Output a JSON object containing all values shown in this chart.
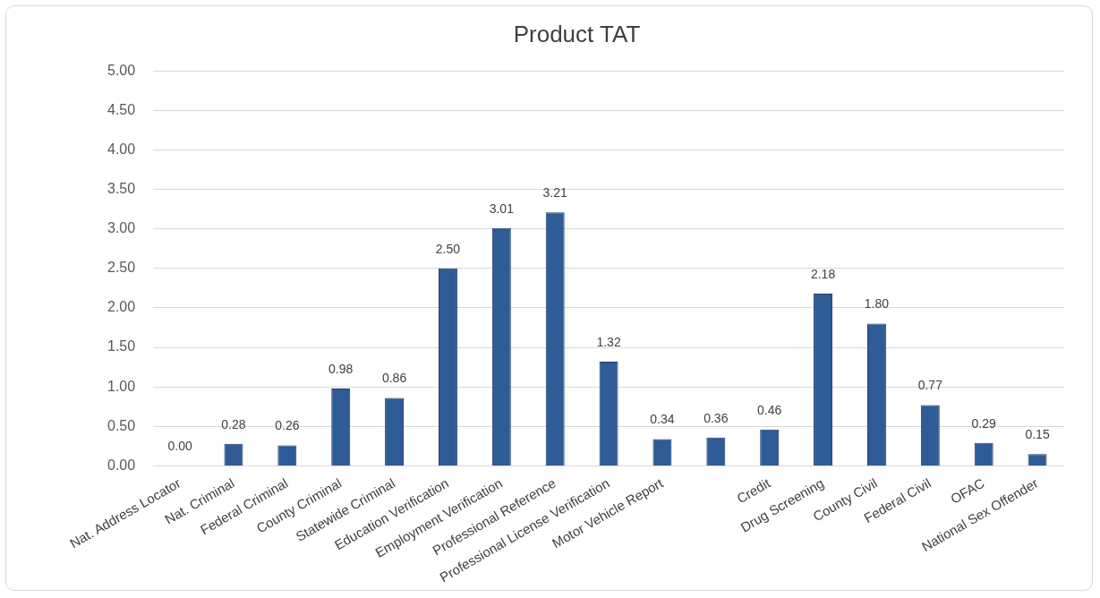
{
  "chart_data": {
    "type": "bar",
    "title": "Product TAT",
    "categories": [
      "Nat. Address Locator",
      "Nat. Criminal",
      "Federal Criminal",
      "County Criminal",
      "Statewide Criminal",
      "Education Verification",
      "Employment Verification",
      "Professional Reference",
      "Professional License Verification",
      "Motor Vehicle Report",
      null,
      "Credit",
      "Drug Screening",
      "County Civil",
      "Federal Civil",
      "OFAC",
      "National Sex Offender"
    ],
    "values": [
      0,
      0.28,
      0.26,
      0.98,
      0.86,
      2.5,
      3.01,
      3.21,
      1.32,
      0.34,
      0.36,
      0.46,
      2.18,
      1.8,
      0.77,
      0.29,
      0.15
    ],
    "value_labels": [
      "0.00",
      "0.28",
      "0.26",
      "0.98",
      "0.86",
      "2.50",
      "3.01",
      "3.21",
      "1.32",
      "0.34",
      "0.36",
      "0.46",
      "2.18",
      "1.80",
      "0.77",
      "0.29",
      "0.15"
    ],
    "color": "#2f5b97",
    "ylim": [
      0,
      5
    ],
    "yticks": [
      {
        "value": 0,
        "label": "0.00"
      },
      {
        "value": 0.5,
        "label": "0.50"
      },
      {
        "value": 1,
        "label": "1.00"
      },
      {
        "value": 1.5,
        "label": "1.50"
      },
      {
        "value": 2,
        "label": "2.00"
      },
      {
        "value": 2.5,
        "label": "2.50"
      },
      {
        "value": 3,
        "label": "3.00"
      },
      {
        "value": 3.5,
        "label": "3.50"
      },
      {
        "value": 4,
        "label": "4.00"
      },
      {
        "value": 4.5,
        "label": "4.50"
      },
      {
        "value": 5,
        "label": "5.00"
      }
    ],
    "grid": "y",
    "legend": false
  }
}
